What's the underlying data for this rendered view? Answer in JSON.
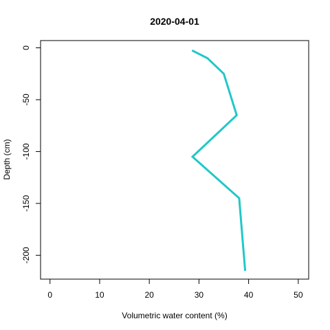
{
  "chart_data": {
    "type": "line",
    "title": "2020-04-01",
    "xlabel": "Volumetric water content (%)",
    "ylabel": "Depth (cm)",
    "xlim": [
      -1.9,
      52.1
    ],
    "ylim": [
      -223,
      7
    ],
    "x_ticks": [
      0,
      10,
      20,
      30,
      40,
      50
    ],
    "y_ticks": [
      0,
      -50,
      -100,
      -150,
      -200
    ],
    "grid": false,
    "legend": "none",
    "series": [
      {
        "color": "#1fc8c8",
        "points": [
          {
            "x": 28.6,
            "y": -2.5
          },
          {
            "x": 31.7,
            "y": -10
          },
          {
            "x": 35.0,
            "y": -25
          },
          {
            "x": 37.6,
            "y": -65
          },
          {
            "x": 28.7,
            "y": -105
          },
          {
            "x": 38.1,
            "y": -145
          },
          {
            "x": 39.3,
            "y": -215
          }
        ]
      }
    ]
  }
}
